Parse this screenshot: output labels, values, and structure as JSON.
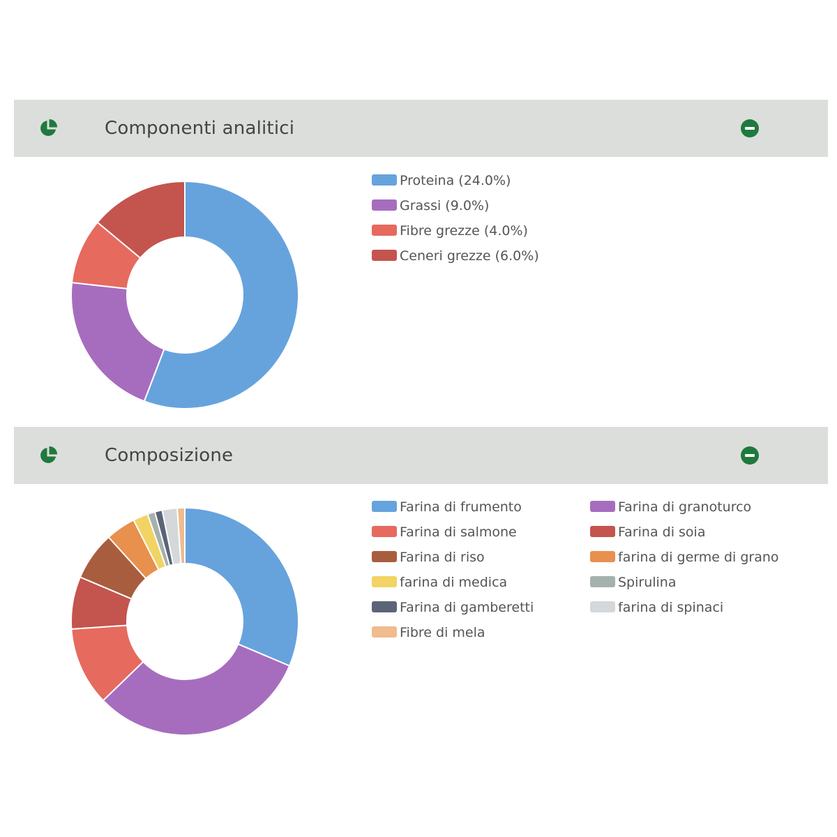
{
  "panels": [
    {
      "title": "Componenti analitici",
      "icon": "pie-chart-icon",
      "collapse_icon": "minus-circle-icon"
    },
    {
      "title": "Composizione",
      "icon": "pie-chart-icon",
      "collapse_icon": "minus-circle-icon"
    }
  ],
  "chart_data": [
    {
      "type": "pie",
      "donut": true,
      "legend_position": "right",
      "categories": [
        "Proteina (24.0%)",
        "Grassi (9.0%)",
        "Fibre grezze (4.0%)",
        "Ceneri grezze (6.0%)"
      ],
      "values": [
        24.0,
        9.0,
        4.0,
        6.0
      ],
      "colors": [
        "#66a3dd",
        "#a66dbf",
        "#e66a5e",
        "#c4544e"
      ]
    },
    {
      "type": "pie",
      "donut": true,
      "legend_position": "right",
      "categories": [
        "Farina di frumento",
        "Farina di granoturco",
        "Farina di salmone",
        "Farina di soia",
        "Farina di riso",
        "farina di germe di grano",
        "farina di medica",
        "Spirulina",
        "Farina di gamberetti",
        "farina di spinaci",
        "Fibre di mela"
      ],
      "values": [
        29.5,
        29.5,
        10.5,
        7,
        6.5,
        4,
        2,
        1,
        1,
        2,
        1
      ],
      "colors": [
        "#66a3dd",
        "#a66dbf",
        "#e66a5e",
        "#c4544e",
        "#a95d3f",
        "#e8904e",
        "#f2d464",
        "#a5b1ad",
        "#5b6577",
        "#d5d8da",
        "#f0bb8e"
      ]
    }
  ]
}
